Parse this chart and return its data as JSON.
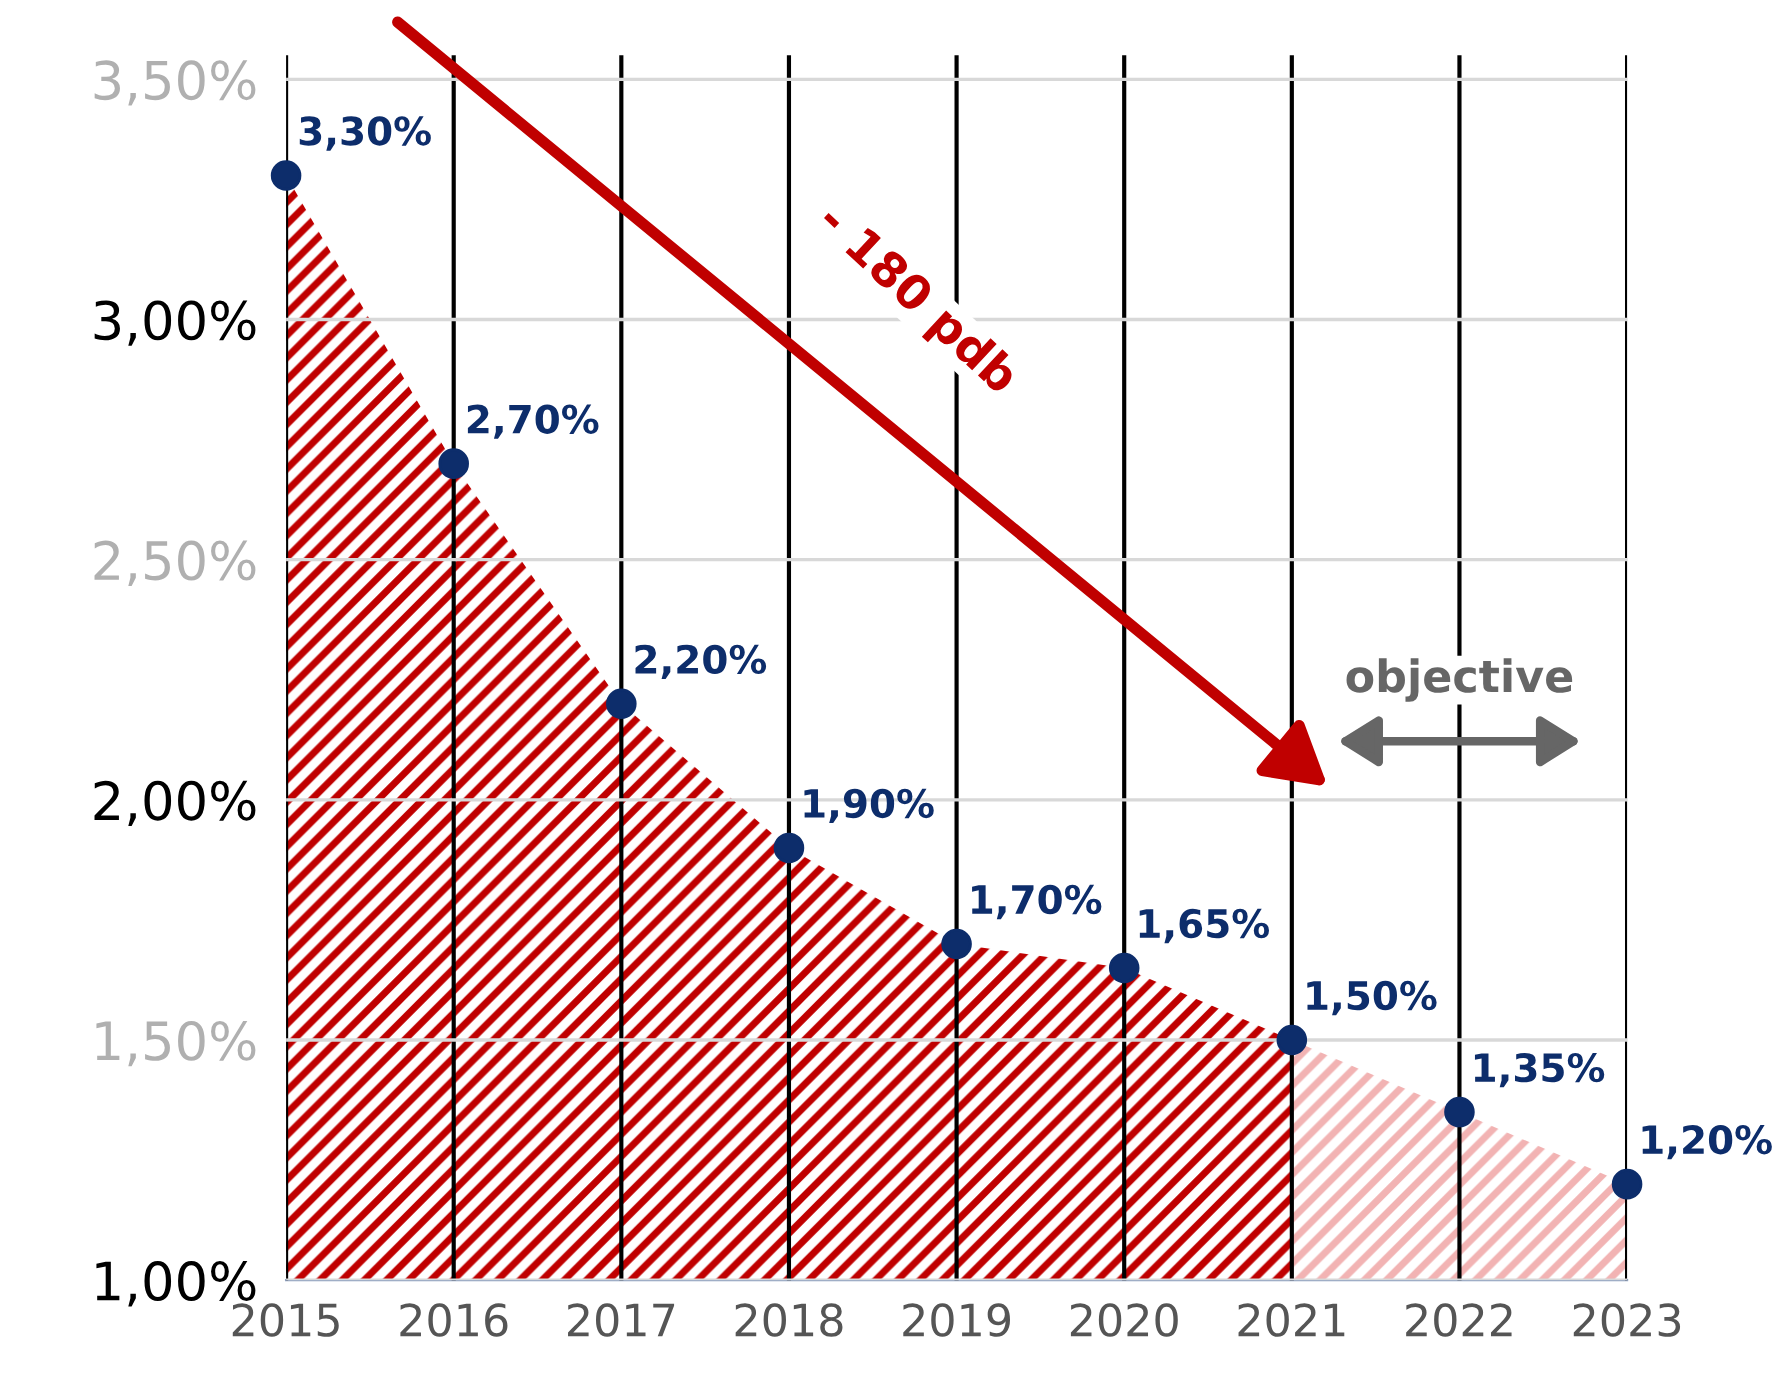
{
  "chart_data": {
    "type": "area",
    "x": [
      2015,
      2016,
      2017,
      2018,
      2019,
      2020,
      2021,
      2022,
      2023
    ],
    "series": [
      {
        "color": "#c00000",
        "values": [
          3.3,
          2.7,
          2.2,
          1.9,
          1.7,
          1.65,
          1.5,
          null,
          null
        ]
      },
      {
        "color": "#f2b3b3",
        "values": [
          null,
          null,
          null,
          null,
          null,
          null,
          1.5,
          1.35,
          1.2
        ]
      },
      {
        "type": "scatter",
        "marker": "circle",
        "color": "#0d2d6b",
        "values": [
          3.3,
          2.7,
          2.2,
          1.9,
          1.7,
          1.65,
          1.5,
          1.35,
          1.2
        ],
        "value_labels": [
          "3,30%",
          "2,70%",
          "2,20%",
          "1,90%",
          "1,70%",
          "1,65%",
          "1,50%",
          "1,35%",
          "1,20%"
        ]
      }
    ],
    "xlim": [
      2015,
      2023
    ],
    "xticks": [
      2015,
      2016,
      2017,
      2018,
      2019,
      2020,
      2021,
      2022,
      2023
    ],
    "ylim": [
      1,
      3.55
    ],
    "yticks": [
      {
        "value": 1,
        "label": "1,00%"
      },
      {
        "value": 1.5,
        "label": "1,50%"
      },
      {
        "value": 2,
        "label": "2,00%"
      },
      {
        "value": 2.5,
        "label": "2,50%"
      },
      {
        "value": 3,
        "label": "3,00%"
      },
      {
        "value": 3.5,
        "label": "3,50%"
      }
    ],
    "grid": true,
    "annotations": [
      "- 180 pdb",
      "objective"
    ]
  }
}
